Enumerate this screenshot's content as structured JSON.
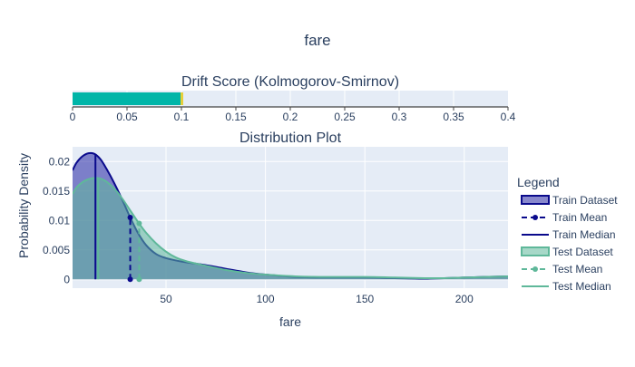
{
  "page_title": "fare",
  "chart_data": [
    {
      "type": "bar",
      "title": "Drift Score (Kolmogorov-Smirnov)",
      "orientation": "horizontal",
      "value": 0.1,
      "threshold": 0.1,
      "xlim": [
        0,
        0.4
      ],
      "x_ticks": [
        "0",
        "0.05",
        "0.1",
        "0.15",
        "0.2",
        "0.25",
        "0.3",
        "0.35",
        "0.4"
      ],
      "colors": {
        "bar": "#00b5a8",
        "threshold": "#e6cf3a",
        "background": "#e5ecf6"
      }
    },
    {
      "type": "area",
      "title": "Distribution Plot",
      "xlabel": "fare",
      "ylabel": "Probability Density",
      "xlim": [
        3,
        222
      ],
      "ylim": [
        -0.0015,
        0.0225
      ],
      "x_ticks": [
        50,
        100,
        150,
        200
      ],
      "x_tick_labels": [
        "50",
        "100",
        "150",
        "200"
      ],
      "y_ticks": [
        0,
        0.005,
        0.01,
        0.015,
        0.02
      ],
      "y_tick_labels": [
        "0",
        "0.005",
        "0.01",
        "0.015",
        "0.02"
      ],
      "grid": true,
      "legend_title": "Legend",
      "legend_position": "right",
      "series": [
        {
          "name": "Train Dataset",
          "color": "#0a0a8c",
          "fill": "rgba(26,26,160,0.52)",
          "x": [
            3,
            5,
            8,
            11,
            14,
            17,
            20,
            24,
            28,
            32,
            36,
            40,
            45,
            50,
            55,
            60,
            70,
            80,
            90,
            100,
            115,
            130,
            150,
            165,
            180,
            190,
            200,
            210,
            222
          ],
          "values": [
            0.0185,
            0.0198,
            0.0209,
            0.0214,
            0.0213,
            0.0204,
            0.0188,
            0.0163,
            0.0135,
            0.0105,
            0.0078,
            0.0058,
            0.0043,
            0.0036,
            0.0032,
            0.0029,
            0.0024,
            0.0018,
            0.0012,
            0.0008,
            0.0004,
            0.0003,
            0.0003,
            0.0002,
            0.0001,
            0.0002,
            0.0003,
            0.0004,
            0.0005
          ]
        },
        {
          "name": "Test Dataset",
          "color": "#5fb89a",
          "fill": "rgba(95,184,154,0.55)",
          "x": [
            3,
            5,
            8,
            11,
            14,
            17,
            20,
            24,
            28,
            32,
            36,
            40,
            45,
            50,
            55,
            60,
            70,
            80,
            90,
            100,
            115,
            130,
            150,
            165,
            180,
            190,
            200,
            210,
            222
          ],
          "values": [
            0.0145,
            0.0156,
            0.0165,
            0.017,
            0.0172,
            0.0171,
            0.0166,
            0.0154,
            0.0137,
            0.0117,
            0.0097,
            0.0079,
            0.0061,
            0.0047,
            0.0037,
            0.0031,
            0.0023,
            0.0016,
            0.0011,
            0.0008,
            0.0005,
            0.0004,
            0.0004,
            0.0003,
            0.0002,
            0.0002,
            0.0003,
            0.0004,
            0.0005
          ]
        }
      ],
      "markers": [
        {
          "name": "Train Mean",
          "series": 0,
          "x": 32,
          "y": 0.0105,
          "color": "#0a0a8c",
          "dash": true
        },
        {
          "name": "Train Median",
          "series": 0,
          "x": 14.5,
          "color": "#0a0a8c",
          "dash": false
        },
        {
          "name": "Test Mean",
          "series": 1,
          "x": 36.5,
          "y": 0.0095,
          "color": "#5fb89a",
          "dash": true
        },
        {
          "name": "Test Median",
          "series": 1,
          "x": 14.5,
          "color": "#5fb89a",
          "dash": false
        }
      ],
      "legend_items": [
        {
          "label": "Train Dataset",
          "kind": "fill",
          "color": "#0a0a8c",
          "fill": "rgba(26,26,160,0.52)"
        },
        {
          "label": "Train Mean",
          "kind": "dash-marker",
          "color": "#0a0a8c"
        },
        {
          "label": "Train Median",
          "kind": "line",
          "color": "#0a0a8c"
        },
        {
          "label": "Test Dataset",
          "kind": "fill",
          "color": "#5fb89a",
          "fill": "rgba(95,184,154,0.55)"
        },
        {
          "label": "Test Mean",
          "kind": "dash-marker",
          "color": "#5fb89a"
        },
        {
          "label": "Test Median",
          "kind": "line",
          "color": "#5fb89a"
        }
      ]
    }
  ]
}
